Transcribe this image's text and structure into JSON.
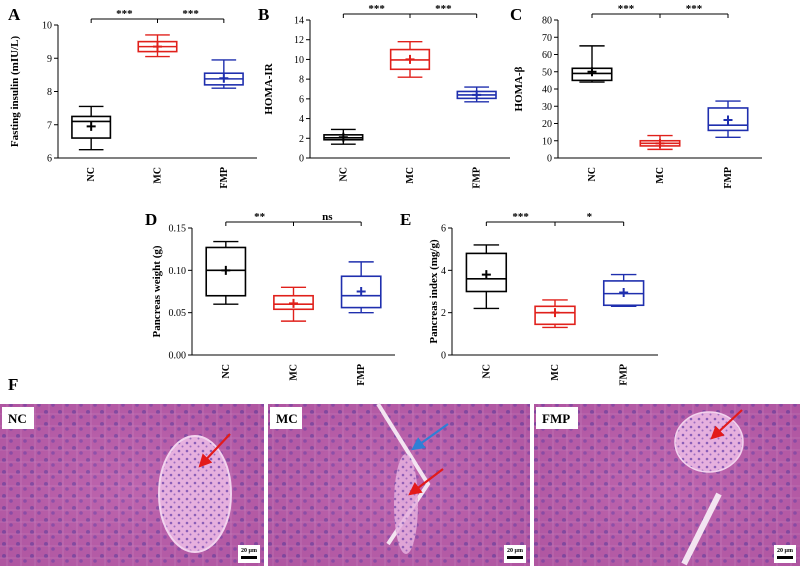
{
  "panel_F_letter": "F",
  "chart_data": [
    {
      "type": "box",
      "panel": "A",
      "ylabel": "Fasting insulin (mIU/L)",
      "categories": [
        "NC",
        "MC",
        "FMP"
      ],
      "ylim": [
        6,
        10
      ],
      "yticks": [
        "6",
        "7",
        "8",
        "9",
        "10"
      ],
      "colors": [
        "#000000",
        "#e0201b",
        "#1f2fae"
      ],
      "boxes": [
        {
          "min": 6.25,
          "q1": 6.6,
          "median": 7.1,
          "q3": 7.25,
          "max": 7.55,
          "mean": 6.95
        },
        {
          "min": 9.05,
          "q1": 9.2,
          "median": 9.35,
          "q3": 9.5,
          "max": 9.7,
          "mean": 9.35
        },
        {
          "min": 8.1,
          "q1": 8.2,
          "median": 8.38,
          "q3": 8.55,
          "max": 8.95,
          "mean": 8.4
        }
      ],
      "significance": [
        "***",
        "***"
      ]
    },
    {
      "type": "box",
      "panel": "B",
      "ylabel": "HOMA-IR",
      "categories": [
        "NC",
        "MC",
        "FMP"
      ],
      "ylim": [
        0,
        14
      ],
      "yticks": [
        "0",
        "2",
        "4",
        "6",
        "8",
        "10",
        "12",
        "14"
      ],
      "colors": [
        "#000000",
        "#e0201b",
        "#1f2fae"
      ],
      "boxes": [
        {
          "min": 1.4,
          "q1": 1.85,
          "median": 2.05,
          "q3": 2.35,
          "max": 2.9,
          "mean": 2.1
        },
        {
          "min": 8.2,
          "q1": 9.0,
          "median": 9.95,
          "q3": 11.0,
          "max": 11.8,
          "mean": 10.0
        },
        {
          "min": 5.7,
          "q1": 6.05,
          "median": 6.4,
          "q3": 6.75,
          "max": 7.2,
          "mean": 6.4
        }
      ],
      "significance": [
        "***",
        "***"
      ]
    },
    {
      "type": "box",
      "panel": "C",
      "ylabel": "HOMA-β",
      "categories": [
        "NC",
        "MC",
        "FMP"
      ],
      "ylim": [
        0,
        80
      ],
      "yticks": [
        "0",
        "10",
        "20",
        "30",
        "40",
        "50",
        "60",
        "70",
        "80"
      ],
      "colors": [
        "#000000",
        "#e0201b",
        "#1f2fae"
      ],
      "boxes": [
        {
          "min": 44,
          "q1": 45,
          "median": 49,
          "q3": 52,
          "max": 65,
          "mean": 50
        },
        {
          "min": 5,
          "q1": 7,
          "median": 8.5,
          "q3": 10,
          "max": 13,
          "mean": 8.5
        },
        {
          "min": 12,
          "q1": 16,
          "median": 19,
          "q3": 29,
          "max": 33,
          "mean": 22
        }
      ],
      "significance": [
        "***",
        "***"
      ]
    },
    {
      "type": "box",
      "panel": "D",
      "ylabel": "Pancreas weight (g)",
      "categories": [
        "NC",
        "MC",
        "FMP"
      ],
      "ylim": [
        0,
        0.15
      ],
      "yticks": [
        "0.00",
        "0.05",
        "0.10",
        "0.15"
      ],
      "colors": [
        "#000000",
        "#e0201b",
        "#1f2fae"
      ],
      "boxes": [
        {
          "min": 0.06,
          "q1": 0.07,
          "median": 0.1,
          "q3": 0.127,
          "max": 0.134,
          "mean": 0.1
        },
        {
          "min": 0.04,
          "q1": 0.054,
          "median": 0.06,
          "q3": 0.07,
          "max": 0.08,
          "mean": 0.061
        },
        {
          "min": 0.05,
          "q1": 0.056,
          "median": 0.07,
          "q3": 0.093,
          "max": 0.11,
          "mean": 0.075
        }
      ],
      "significance": [
        "**",
        "ns"
      ]
    },
    {
      "type": "box",
      "panel": "E",
      "ylabel": "Pancreas index (mg/g)",
      "categories": [
        "NC",
        "MC",
        "FMP"
      ],
      "ylim": [
        0,
        6
      ],
      "yticks": [
        "0",
        "2",
        "4",
        "6"
      ],
      "colors": [
        "#000000",
        "#e0201b",
        "#1f2fae"
      ],
      "boxes": [
        {
          "min": 2.2,
          "q1": 3.0,
          "median": 3.6,
          "q3": 4.8,
          "max": 5.2,
          "mean": 3.8
        },
        {
          "min": 1.3,
          "q1": 1.45,
          "median": 2.0,
          "q3": 2.3,
          "max": 2.6,
          "mean": 2.0
        },
        {
          "min": 2.3,
          "q1": 2.35,
          "median": 2.9,
          "q3": 3.5,
          "max": 3.8,
          "mean": 2.95
        }
      ],
      "significance": [
        "***",
        "*"
      ]
    }
  ],
  "histology": [
    {
      "label": "NC",
      "scale_text": "20 μm",
      "arrow_colors": [
        "#e31a1a"
      ]
    },
    {
      "label": "MC",
      "scale_text": "20 μm",
      "arrow_colors": [
        "#2f7fd6",
        "#e31a1a"
      ]
    },
    {
      "label": "FMP",
      "scale_text": "20 μm",
      "arrow_colors": [
        "#e31a1a"
      ]
    }
  ]
}
